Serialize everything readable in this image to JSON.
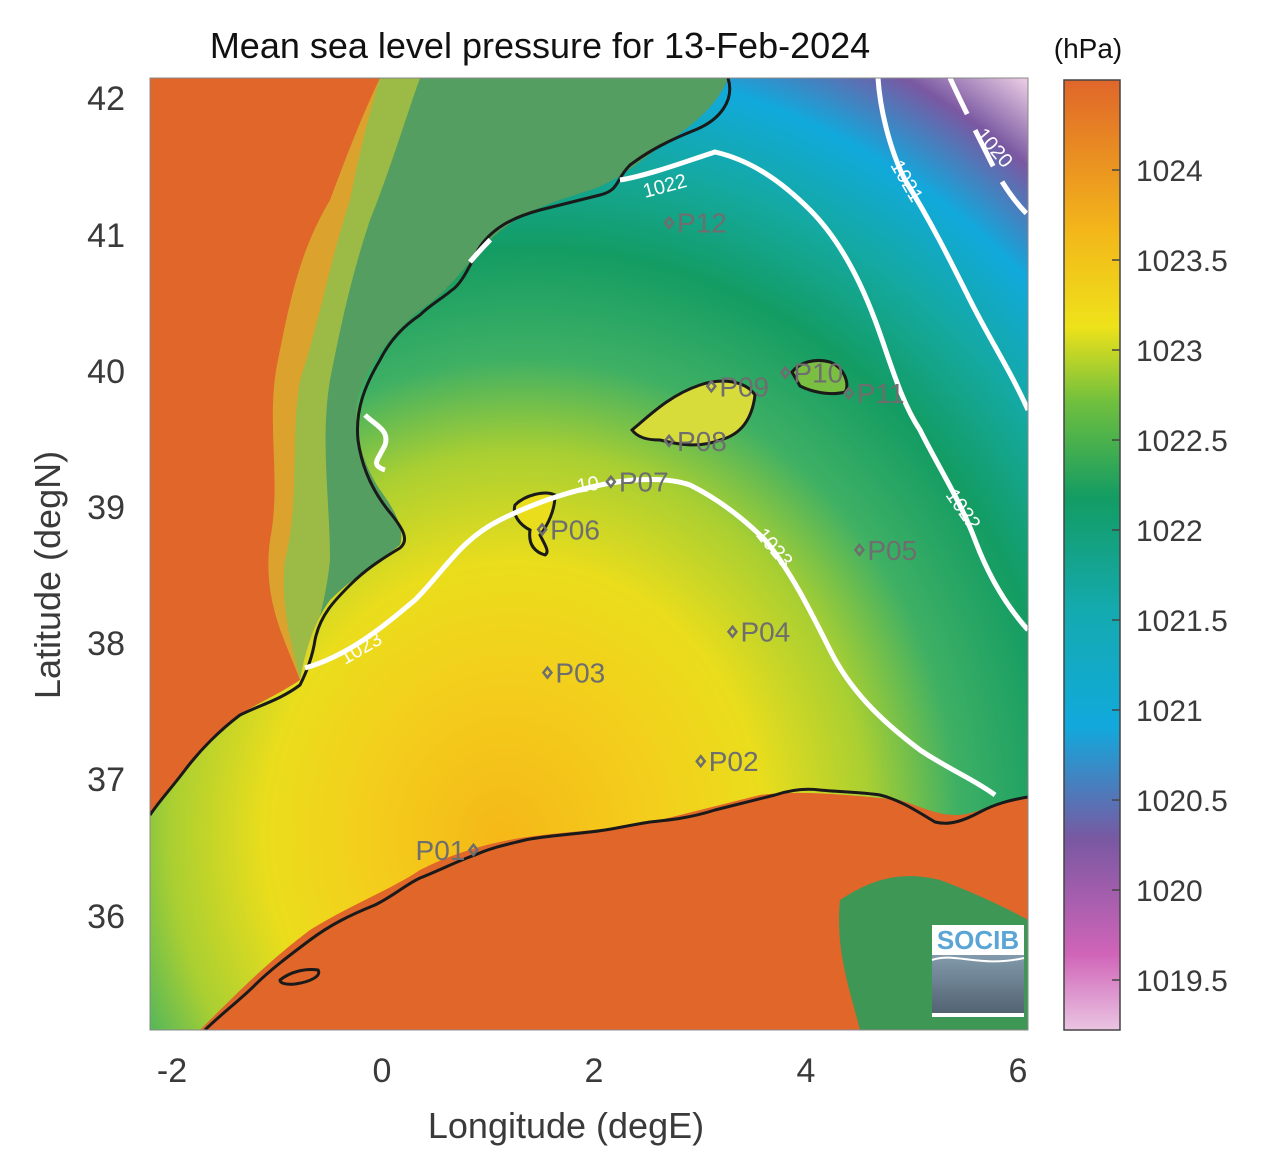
{
  "title": "Mean sea level pressure for 13-Feb-2024",
  "colorbar_unit": "(hPa)",
  "xlabel": "Longitude (degE)",
  "ylabel": "Latitude (degN)",
  "x_ticks": [
    "-2",
    "0",
    "2",
    "4",
    "6"
  ],
  "y_ticks": [
    "42",
    "41",
    "40",
    "39",
    "38",
    "37",
    "36"
  ],
  "colorbar_ticks": [
    "1024",
    "1023.5",
    "1023",
    "1022.5",
    "1022",
    "1021.5",
    "1021",
    "1020.5",
    "1020",
    "1019.5"
  ],
  "contour_labels": [
    "1020",
    "1021",
    "1022",
    "1022",
    "1023",
    "1023",
    "10"
  ],
  "points": [
    {
      "name": "P01",
      "lon": 0.85,
      "lat": 36.5
    },
    {
      "name": "P02",
      "lon": 3.0,
      "lat": 37.15
    },
    {
      "name": "P03",
      "lon": 1.55,
      "lat": 37.8
    },
    {
      "name": "P04",
      "lon": 3.3,
      "lat": 38.1
    },
    {
      "name": "P05",
      "lon": 4.5,
      "lat": 38.7
    },
    {
      "name": "P06",
      "lon": 1.5,
      "lat": 38.85
    },
    {
      "name": "P07",
      "lon": 2.15,
      "lat": 39.2
    },
    {
      "name": "P08",
      "lon": 2.7,
      "lat": 39.5
    },
    {
      "name": "P09",
      "lon": 3.1,
      "lat": 39.9
    },
    {
      "name": "P10",
      "lon": 3.8,
      "lat": 40.0
    },
    {
      "name": "P11",
      "lon": 4.4,
      "lat": 39.85
    },
    {
      "name": "P12",
      "lon": 2.7,
      "lat": 41.1
    }
  ],
  "logo_text": "SOCIB",
  "colors": {
    "land": "#e0662a",
    "coast": "#1a1a1a",
    "contour": "#ffffff",
    "marker": "#6e6e6e"
  }
}
